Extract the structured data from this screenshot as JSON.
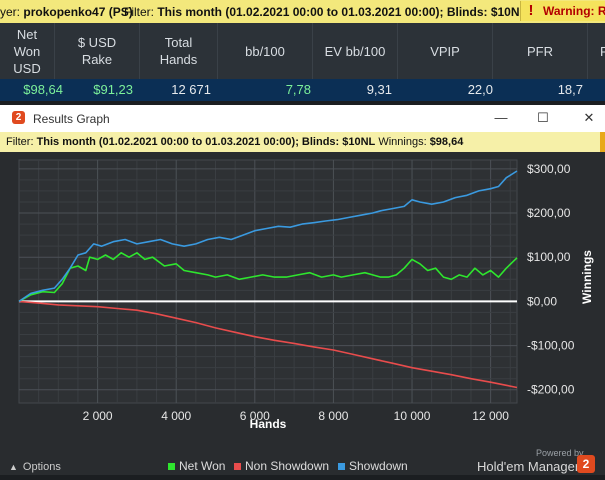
{
  "topbar": {
    "player_label": "yer:",
    "player_value": "prokopenko47 (PS)",
    "filter_label": "Filter:",
    "filter_value": "This month (01.02.2021 00:00 to 01.03.2021 00:00); Blinds: $10NL",
    "warning_icon": "!",
    "warning_text": "Warning: Re"
  },
  "stats": {
    "headers": [
      {
        "line1": "Net",
        "line2": "Won",
        "line3": "USD"
      },
      {
        "line1": "$ USD",
        "line2": "Rake"
      },
      {
        "line1": "Total",
        "line2": "Hands"
      },
      {
        "line1": "bb/100"
      },
      {
        "line1": "EV bb/100"
      },
      {
        "line1": "VPIP"
      },
      {
        "line1": "PFR"
      },
      {
        "line1": "F"
      }
    ],
    "row": [
      "$98,64",
      "$91,23",
      "12 671",
      "7,78",
      "9,31",
      "22,0",
      "18,7"
    ]
  },
  "window": {
    "title": "Results Graph",
    "app_icon": "2",
    "minimize_icon": "—",
    "maximize_icon": "☐",
    "close_icon": "✕",
    "filter_label": "Filter:",
    "filter_value": "This month (01.02.2021 00:00 to 01.03.2021 00:00); Blinds: $10NL",
    "winnings_label": "Winnings:",
    "winnings_value": "$98,64"
  },
  "options_label": "Options",
  "powered_by": "Powered by",
  "brand": "Hold'em Manager",
  "brand_icon": "2",
  "colors": {
    "net_won": "#2ee62e",
    "non_showdown": "#e84c4c",
    "showdown": "#3a9ae0",
    "zero_line": "#ffffff"
  },
  "chart_data": {
    "type": "line",
    "xlabel": "Hands",
    "ylabel": "Winnings",
    "xlim": [
      0,
      12671
    ],
    "ylim": [
      -230,
      320
    ],
    "x_ticks": [
      2000,
      4000,
      6000,
      8000,
      10000,
      12000
    ],
    "x_tick_labels": [
      "2 000",
      "4 000",
      "6 000",
      "8 000",
      "10 000",
      "12 000"
    ],
    "y_ticks": [
      300,
      200,
      100,
      0,
      -100,
      -200
    ],
    "y_tick_labels": [
      "$300,00",
      "$200,00",
      "$100,00",
      "$0,00",
      "-$100,00",
      "-$200,00"
    ],
    "grid": true,
    "legend_position": "bottom",
    "series": [
      {
        "name": "Net Won",
        "color_key": "net_won",
        "x": [
          0,
          300,
          600,
          900,
          1100,
          1300,
          1500,
          1700,
          1800,
          2000,
          2200,
          2400,
          2600,
          2800,
          3000,
          3200,
          3400,
          3700,
          4000,
          4200,
          4500,
          4800,
          5000,
          5300,
          5600,
          5900,
          6200,
          6500,
          6800,
          7100,
          7400,
          7700,
          8000,
          8200,
          8500,
          8800,
          9000,
          9200,
          9400,
          9600,
          9800,
          10000,
          10200,
          10400,
          10600,
          10800,
          11000,
          11200,
          11400,
          11600,
          11800,
          12000,
          12200,
          12400,
          12671
        ],
        "y": [
          0,
          15,
          22,
          20,
          40,
          75,
          80,
          70,
          100,
          95,
          105,
          95,
          110,
          100,
          110,
          95,
          100,
          80,
          85,
          70,
          65,
          60,
          55,
          60,
          50,
          55,
          60,
          55,
          55,
          60,
          65,
          55,
          60,
          55,
          60,
          65,
          60,
          55,
          55,
          60,
          75,
          95,
          85,
          70,
          75,
          55,
          50,
          60,
          55,
          75,
          60,
          70,
          55,
          75,
          98.64
        ]
      },
      {
        "name": "Non Showdown",
        "color_key": "non_showdown",
        "x": [
          0,
          500,
          1000,
          1500,
          2000,
          2500,
          3000,
          3500,
          4000,
          4500,
          5000,
          5500,
          6000,
          6500,
          7000,
          7500,
          8000,
          8500,
          9000,
          9500,
          10000,
          10500,
          11000,
          11500,
          12000,
          12400,
          12671
        ],
        "y": [
          0,
          -4,
          -8,
          -10,
          -12,
          -16,
          -20,
          -28,
          -38,
          -48,
          -60,
          -70,
          -80,
          -88,
          -95,
          -103,
          -110,
          -120,
          -130,
          -140,
          -150,
          -158,
          -166,
          -175,
          -183,
          -190,
          -195
        ]
      },
      {
        "name": "Showdown",
        "color_key": "showdown",
        "x": [
          0,
          300,
          600,
          900,
          1100,
          1300,
          1500,
          1700,
          1900,
          2100,
          2400,
          2700,
          3000,
          3300,
          3600,
          3900,
          4200,
          4500,
          4800,
          5100,
          5400,
          5700,
          6000,
          6300,
          6600,
          6900,
          7200,
          7500,
          7800,
          8100,
          8400,
          8700,
          9000,
          9200,
          9500,
          9800,
          10000,
          10200,
          10500,
          10800,
          11100,
          11400,
          11700,
          12000,
          12200,
          12400,
          12671
        ],
        "y": [
          0,
          18,
          25,
          30,
          50,
          75,
          105,
          110,
          130,
          125,
          135,
          140,
          130,
          135,
          140,
          130,
          125,
          130,
          140,
          145,
          140,
          150,
          160,
          165,
          170,
          168,
          175,
          178,
          182,
          185,
          190,
          195,
          200,
          205,
          210,
          215,
          230,
          225,
          220,
          225,
          235,
          240,
          250,
          255,
          260,
          280,
          295
        ]
      }
    ]
  }
}
